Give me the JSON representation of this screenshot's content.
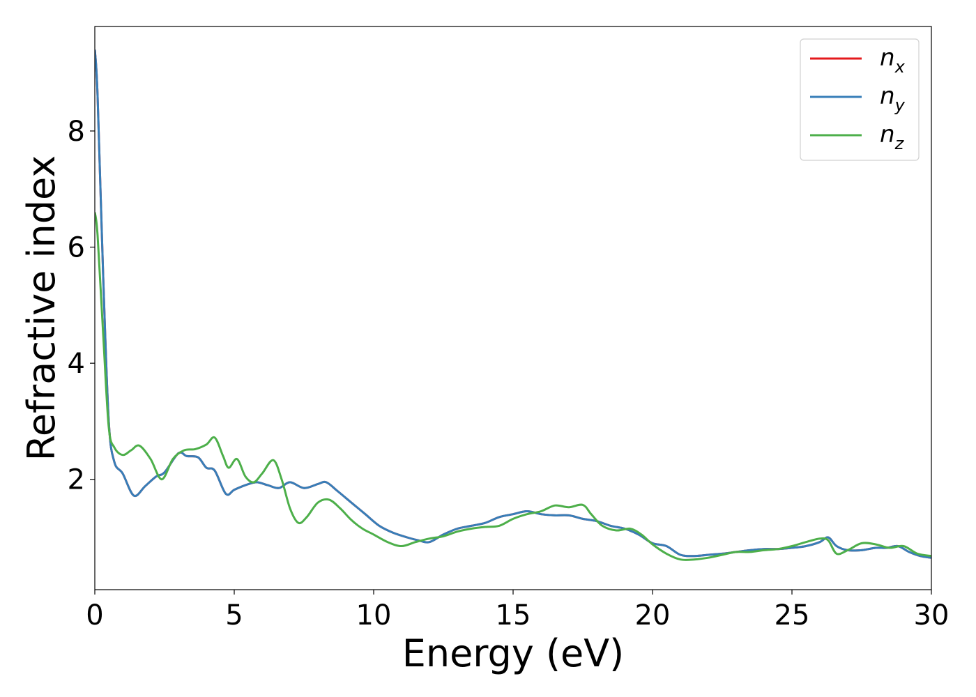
{
  "chart_data": {
    "type": "line",
    "xlabel": "Energy (eV)",
    "ylabel": "Refractive index",
    "xlim": [
      0,
      30
    ],
    "ylim": [
      0.1,
      9.8
    ],
    "xticks": [
      0,
      5,
      10,
      15,
      20,
      25,
      30
    ],
    "yticks": [
      2,
      4,
      6,
      8
    ],
    "xtick_labels": [
      "0",
      "5",
      "10",
      "15",
      "20",
      "25",
      "30"
    ],
    "ytick_labels": [
      "2",
      "4",
      "6",
      "8"
    ],
    "grid": false,
    "legend_position": "top-right",
    "legend": [
      {
        "base": "n",
        "sub": "x",
        "color": "#e41a1c"
      },
      {
        "base": "n",
        "sub": "y",
        "color": "#377eb8"
      },
      {
        "base": "n",
        "sub": "z",
        "color": "#4daf4a"
      }
    ],
    "series": [
      {
        "name": "nx",
        "color": "#e41a1c",
        "x": [
          0,
          0.1,
          0.3,
          0.5,
          0.7,
          1.0,
          1.4,
          1.8,
          2.2,
          2.5,
          3.0,
          3.3,
          3.7,
          4.0,
          4.3,
          4.7,
          5.0,
          5.4,
          5.8,
          6.2,
          6.6,
          7.0,
          7.5,
          8.0,
          8.3,
          8.7,
          9.2,
          9.7,
          10.2,
          10.7,
          11.2,
          11.6,
          12.0,
          12.5,
          13.0,
          13.5,
          14.0,
          14.5,
          15.0,
          15.5,
          16.0,
          16.5,
          17.0,
          17.5,
          18.0,
          18.5,
          19.0,
          19.5,
          20.0,
          20.5,
          21.0,
          21.5,
          22.0,
          22.5,
          23.0,
          23.5,
          24.0,
          24.5,
          25.0,
          25.5,
          26.0,
          26.3,
          26.6,
          27.0,
          27.5,
          28.0,
          28.4,
          28.8,
          29.2,
          29.6,
          30.0
        ],
        "y": [
          9.4,
          8.6,
          5.5,
          3.0,
          2.3,
          2.1,
          1.72,
          1.88,
          2.05,
          2.12,
          2.45,
          2.4,
          2.38,
          2.2,
          2.15,
          1.75,
          1.82,
          1.9,
          1.95,
          1.9,
          1.85,
          1.95,
          1.85,
          1.92,
          1.95,
          1.8,
          1.6,
          1.4,
          1.2,
          1.08,
          1.0,
          0.95,
          0.92,
          1.05,
          1.15,
          1.2,
          1.25,
          1.35,
          1.4,
          1.45,
          1.4,
          1.38,
          1.38,
          1.32,
          1.28,
          1.2,
          1.15,
          1.05,
          0.9,
          0.85,
          0.7,
          0.68,
          0.7,
          0.72,
          0.75,
          0.78,
          0.8,
          0.8,
          0.82,
          0.85,
          0.92,
          1.0,
          0.85,
          0.78,
          0.78,
          0.82,
          0.82,
          0.85,
          0.75,
          0.68,
          0.65
        ]
      },
      {
        "name": "ny",
        "color": "#377eb8",
        "x": [
          0,
          0.1,
          0.3,
          0.5,
          0.7,
          1.0,
          1.4,
          1.8,
          2.2,
          2.5,
          3.0,
          3.3,
          3.7,
          4.0,
          4.3,
          4.7,
          5.0,
          5.4,
          5.8,
          6.2,
          6.6,
          7.0,
          7.5,
          8.0,
          8.3,
          8.7,
          9.2,
          9.7,
          10.2,
          10.7,
          11.2,
          11.6,
          12.0,
          12.5,
          13.0,
          13.5,
          14.0,
          14.5,
          15.0,
          15.5,
          16.0,
          16.5,
          17.0,
          17.5,
          18.0,
          18.5,
          19.0,
          19.5,
          20.0,
          20.5,
          21.0,
          21.5,
          22.0,
          22.5,
          23.0,
          23.5,
          24.0,
          24.5,
          25.0,
          25.5,
          26.0,
          26.3,
          26.6,
          27.0,
          27.5,
          28.0,
          28.4,
          28.8,
          29.2,
          29.6,
          30.0
        ],
        "y": [
          9.4,
          8.6,
          5.5,
          3.0,
          2.3,
          2.1,
          1.72,
          1.88,
          2.05,
          2.12,
          2.45,
          2.4,
          2.38,
          2.2,
          2.15,
          1.75,
          1.82,
          1.9,
          1.95,
          1.9,
          1.85,
          1.95,
          1.85,
          1.92,
          1.95,
          1.8,
          1.6,
          1.4,
          1.2,
          1.08,
          1.0,
          0.95,
          0.92,
          1.05,
          1.15,
          1.2,
          1.25,
          1.35,
          1.4,
          1.45,
          1.4,
          1.38,
          1.38,
          1.32,
          1.28,
          1.2,
          1.15,
          1.05,
          0.9,
          0.85,
          0.7,
          0.68,
          0.7,
          0.72,
          0.75,
          0.78,
          0.8,
          0.8,
          0.82,
          0.85,
          0.92,
          1.0,
          0.85,
          0.78,
          0.78,
          0.82,
          0.82,
          0.85,
          0.75,
          0.68,
          0.65
        ]
      },
      {
        "name": "nz",
        "color": "#4daf4a",
        "x": [
          0,
          0.1,
          0.3,
          0.5,
          0.7,
          1.0,
          1.3,
          1.6,
          2.0,
          2.4,
          2.8,
          3.2,
          3.6,
          4.0,
          4.3,
          4.6,
          4.8,
          5.1,
          5.4,
          5.7,
          6.0,
          6.4,
          6.7,
          7.0,
          7.3,
          7.6,
          8.0,
          8.4,
          8.8,
          9.2,
          9.6,
          10.0,
          10.5,
          11.0,
          11.5,
          12.0,
          12.5,
          13.0,
          13.5,
          14.0,
          14.5,
          15.0,
          15.5,
          16.0,
          16.5,
          17.0,
          17.5,
          17.8,
          18.2,
          18.7,
          19.2,
          19.6,
          20.0,
          20.5,
          21.0,
          21.5,
          22.0,
          22.5,
          23.0,
          23.5,
          24.0,
          24.5,
          25.0,
          25.5,
          26.0,
          26.3,
          26.6,
          27.0,
          27.5,
          28.0,
          28.5,
          29.0,
          29.5,
          30.0
        ],
        "y": [
          6.6,
          6.2,
          4.5,
          2.9,
          2.55,
          2.42,
          2.5,
          2.58,
          2.35,
          2.0,
          2.35,
          2.5,
          2.52,
          2.6,
          2.72,
          2.4,
          2.2,
          2.35,
          2.05,
          1.95,
          2.1,
          2.33,
          2.0,
          1.5,
          1.25,
          1.35,
          1.6,
          1.65,
          1.5,
          1.3,
          1.15,
          1.05,
          0.92,
          0.85,
          0.92,
          0.98,
          1.02,
          1.1,
          1.15,
          1.18,
          1.2,
          1.32,
          1.4,
          1.45,
          1.55,
          1.52,
          1.56,
          1.4,
          1.2,
          1.12,
          1.15,
          1.05,
          0.88,
          0.72,
          0.62,
          0.62,
          0.65,
          0.7,
          0.75,
          0.75,
          0.78,
          0.8,
          0.85,
          0.92,
          0.98,
          0.95,
          0.72,
          0.78,
          0.9,
          0.88,
          0.82,
          0.85,
          0.72,
          0.68
        ]
      }
    ]
  }
}
